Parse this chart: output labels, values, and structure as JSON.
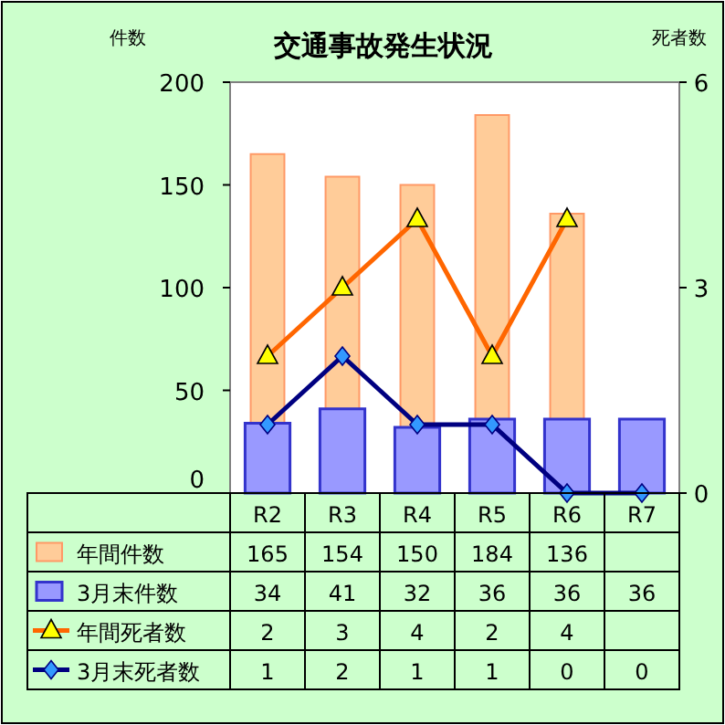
{
  "chart_data": {
    "type": "bar",
    "title": "交通事故発生状況",
    "ylabel": "件数",
    "y2label": "死者数",
    "categories": [
      "R2",
      "R3",
      "R4",
      "R5",
      "R6",
      "R7"
    ],
    "series": [
      {
        "name": "年間件数",
        "color": "#ffcc99",
        "values": [
          165,
          154,
          150,
          184,
          136,
          null
        ]
      },
      {
        "name": "3月末件数",
        "color": "#9999ff",
        "values": [
          34,
          41,
          32,
          36,
          36,
          36
        ]
      },
      {
        "name": "年間死者数",
        "type": "line",
        "axis": "y2",
        "color": "#ff6600",
        "marker": "triangle",
        "values": [
          2,
          3,
          4,
          2,
          4,
          null
        ]
      },
      {
        "name": "3月末死者数",
        "type": "line",
        "axis": "y2",
        "color": "#000080",
        "marker": "diamond",
        "values": [
          1,
          2,
          1,
          1,
          0,
          0
        ]
      }
    ],
    "ylim": [
      0,
      200
    ],
    "yticks": [
      0,
      50,
      100,
      150,
      200
    ],
    "y2lim": [
      0,
      6
    ],
    "y2ticks": [
      0,
      3,
      6
    ],
    "data_labels": true,
    "legend": "bottom"
  }
}
